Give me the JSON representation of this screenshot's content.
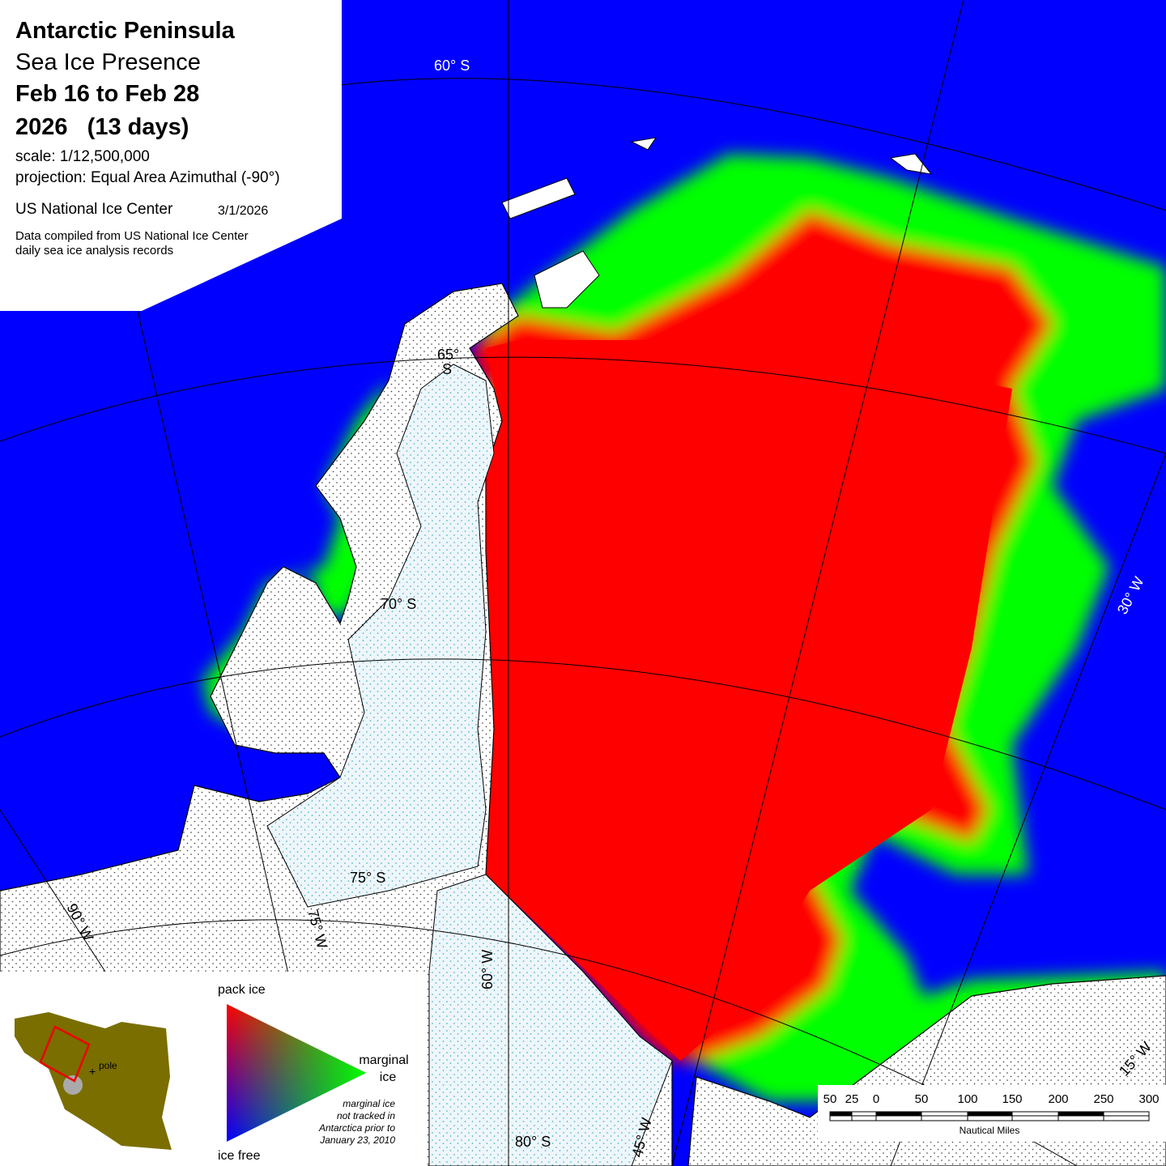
{
  "header": {
    "title": "Antarctic Peninsula",
    "subtitle": "Sea Ice Presence",
    "period": "Feb 16 to Feb 28",
    "year_days": "2026   (13 days)",
    "scale": "scale: 1/12,500,000",
    "projection": "projection: Equal Area Azimuthal (-90°)",
    "agency": "US National Ice Center",
    "date": "3/1/2026",
    "source": [
      "Data compiled from US National Ice Center",
      "daily sea ice analysis records"
    ]
  },
  "graticule": {
    "lat_60": "60° S",
    "lat_65": [
      "65°",
      "S"
    ],
    "lat_70": "70° S",
    "lat_75": "75° S",
    "lat_80": "80° S",
    "lon_90": "90° W",
    "lon_75": "75° W",
    "lon_60": "60° W",
    "lon_45": "45° W",
    "lon_30": "30° W",
    "lon_15": "15° W"
  },
  "legend": {
    "pack_ice": "pack ice",
    "marginal_ice": [
      "marginal",
      "ice"
    ],
    "ice_free": "ice free",
    "note": [
      "marginal ice",
      "not tracked in",
      "Antarctica prior to",
      "January 23, 2010"
    ],
    "inset_pole": "pole"
  },
  "scale_bar": {
    "labels": [
      "50",
      "25",
      "0",
      "50",
      "100",
      "150",
      "200",
      "250",
      "300"
    ],
    "unit": "Nautical Miles"
  }
}
